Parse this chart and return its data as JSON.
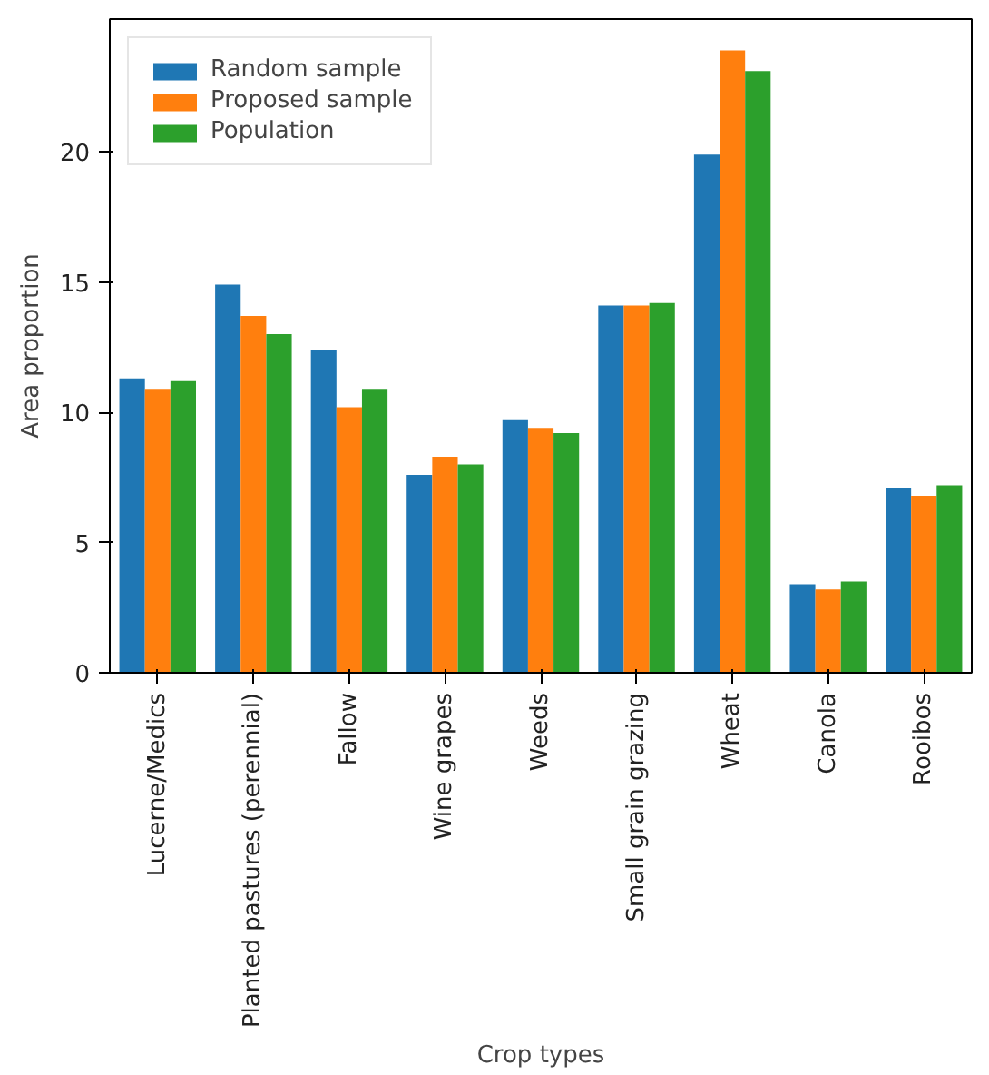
{
  "chart_data": {
    "type": "bar",
    "xlabel": "Crop types",
    "ylabel": "Area proportion",
    "categories": [
      "Lucerne/Medics",
      "Planted pastures (perennial)",
      "Fallow",
      "Wine grapes",
      "Weeds",
      "Small grain grazing",
      "Wheat",
      "Canola",
      "Rooibos"
    ],
    "series": [
      {
        "name": "Random sample",
        "color": "#1f77b4",
        "values": [
          11.3,
          14.9,
          12.4,
          7.6,
          9.7,
          14.1,
          19.9,
          3.4,
          7.1
        ]
      },
      {
        "name": "Proposed sample",
        "color": "#ff7f0e",
        "values": [
          10.9,
          13.7,
          10.2,
          8.3,
          9.4,
          14.1,
          23.9,
          3.2,
          6.8
        ]
      },
      {
        "name": "Population",
        "color": "#2ca02c",
        "values": [
          11.2,
          13.0,
          10.9,
          8.0,
          9.2,
          14.2,
          23.1,
          3.5,
          7.2
        ]
      }
    ],
    "ylim": [
      0,
      25.1
    ],
    "yticks": [
      0,
      5,
      10,
      15,
      20
    ],
    "grid": false,
    "legend": "top left"
  }
}
